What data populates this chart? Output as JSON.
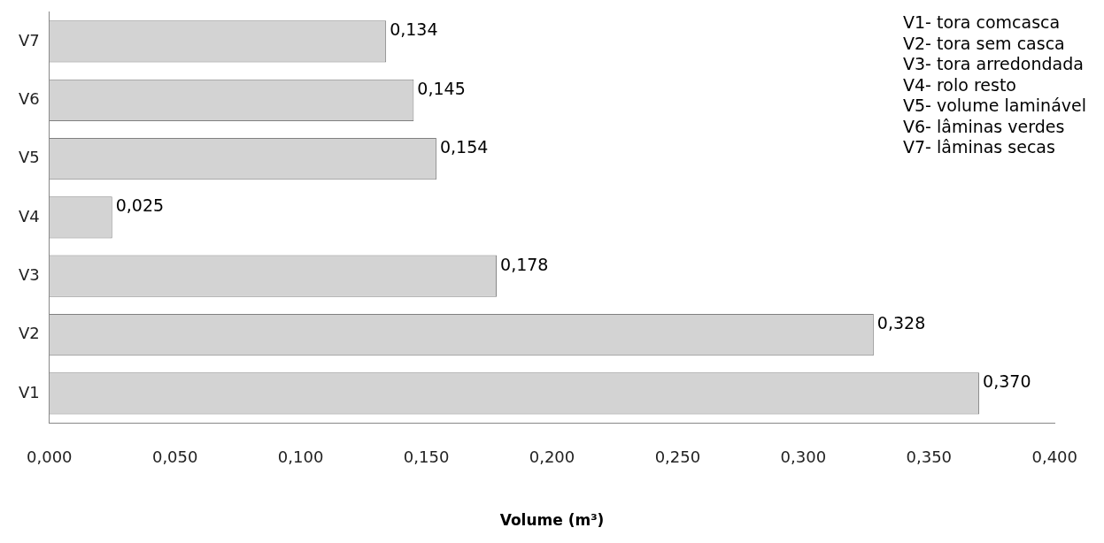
{
  "chart_data": {
    "type": "bar",
    "orientation": "horizontal",
    "xlabel": "Volume (m³)",
    "categories": [
      "V7",
      "V6",
      "V5",
      "V4",
      "V3",
      "V2",
      "V1"
    ],
    "values": [
      0.134,
      0.145,
      0.154,
      0.025,
      0.178,
      0.328,
      0.37
    ],
    "value_labels": [
      "0,134",
      "0,145",
      "0,154",
      "0,025",
      "0,178",
      "0,328",
      "0,370"
    ],
    "color": "#d3d3d3",
    "xlim": [
      0,
      0.4
    ],
    "xticks": [
      {
        "value": 0,
        "label": "0,000"
      },
      {
        "value": 0.05,
        "label": "0,050"
      },
      {
        "value": 0.1,
        "label": "0,100"
      },
      {
        "value": 0.15,
        "label": "0,150"
      },
      {
        "value": 0.2,
        "label": "0,200"
      },
      {
        "value": 0.25,
        "label": "0,250"
      },
      {
        "value": 0.3,
        "label": "0,300"
      },
      {
        "value": 0.35,
        "label": "0,350"
      },
      {
        "value": 0.4,
        "label": "0,400"
      }
    ],
    "grid": false,
    "legend": false,
    "annotations": [
      "V1- tora comcasca",
      "V2- tora sem casca",
      "V3- tora arredondada",
      "V4- rolo resto",
      "V5- volume laminável",
      "V6- lâminas verdes",
      "V7- lâminas secas"
    ]
  }
}
